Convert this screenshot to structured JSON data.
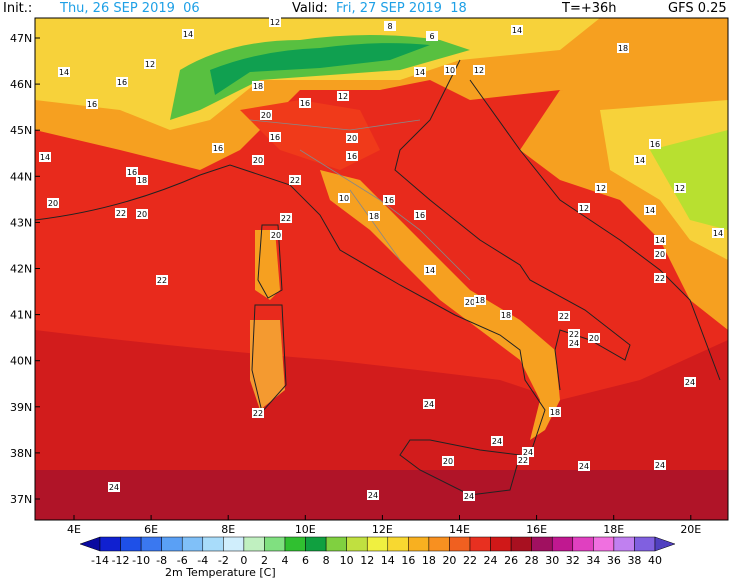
{
  "header": {
    "init_label": "Init.:",
    "init": "Thu, 26 SEP 2019  06",
    "valid_label": "Valid:",
    "valid": "Fri, 27 SEP 2019  18",
    "lead": "T=+36h",
    "model": "GFS 0.25"
  },
  "lat_labels": [
    "47N",
    "46N",
    "45N",
    "44N",
    "43N",
    "42N",
    "41N",
    "40N",
    "39N",
    "38N",
    "37N"
  ],
  "lon_labels": [
    "4E",
    "6E",
    "8E",
    "10E",
    "12E",
    "14E",
    "16E",
    "18E",
    "20E"
  ],
  "colorbar": {
    "labels": [
      "-14",
      "-12",
      "-10",
      "-8",
      "-6",
      "-4",
      "-2",
      "0",
      "2",
      "4",
      "6",
      "8",
      "10",
      "12",
      "14",
      "16",
      "18",
      "20",
      "22",
      "24",
      "26",
      "28",
      "30",
      "32",
      "34",
      "36",
      "38",
      "40"
    ],
    "title": "2m Temperature [C]"
  },
  "map_labels": [
    "14",
    "18",
    "14",
    "16",
    "16",
    "12",
    "14",
    "12",
    "8",
    "6",
    "14",
    "10",
    "12",
    "18",
    "16",
    "12",
    "20",
    "16",
    "16",
    "20",
    "14",
    "18",
    "16",
    "22",
    "16",
    "20",
    "10",
    "18",
    "16",
    "16",
    "20",
    "22",
    "20",
    "22",
    "20",
    "22",
    "14",
    "20",
    "18",
    "18",
    "22",
    "22",
    "24",
    "20",
    "18",
    "24",
    "24",
    "24",
    "20",
    "22",
    "24",
    "24",
    "22",
    "24",
    "24",
    "24",
    "24",
    "22",
    "20",
    "14",
    "14",
    "12",
    "12",
    "14",
    "16",
    "14",
    "12"
  ]
}
